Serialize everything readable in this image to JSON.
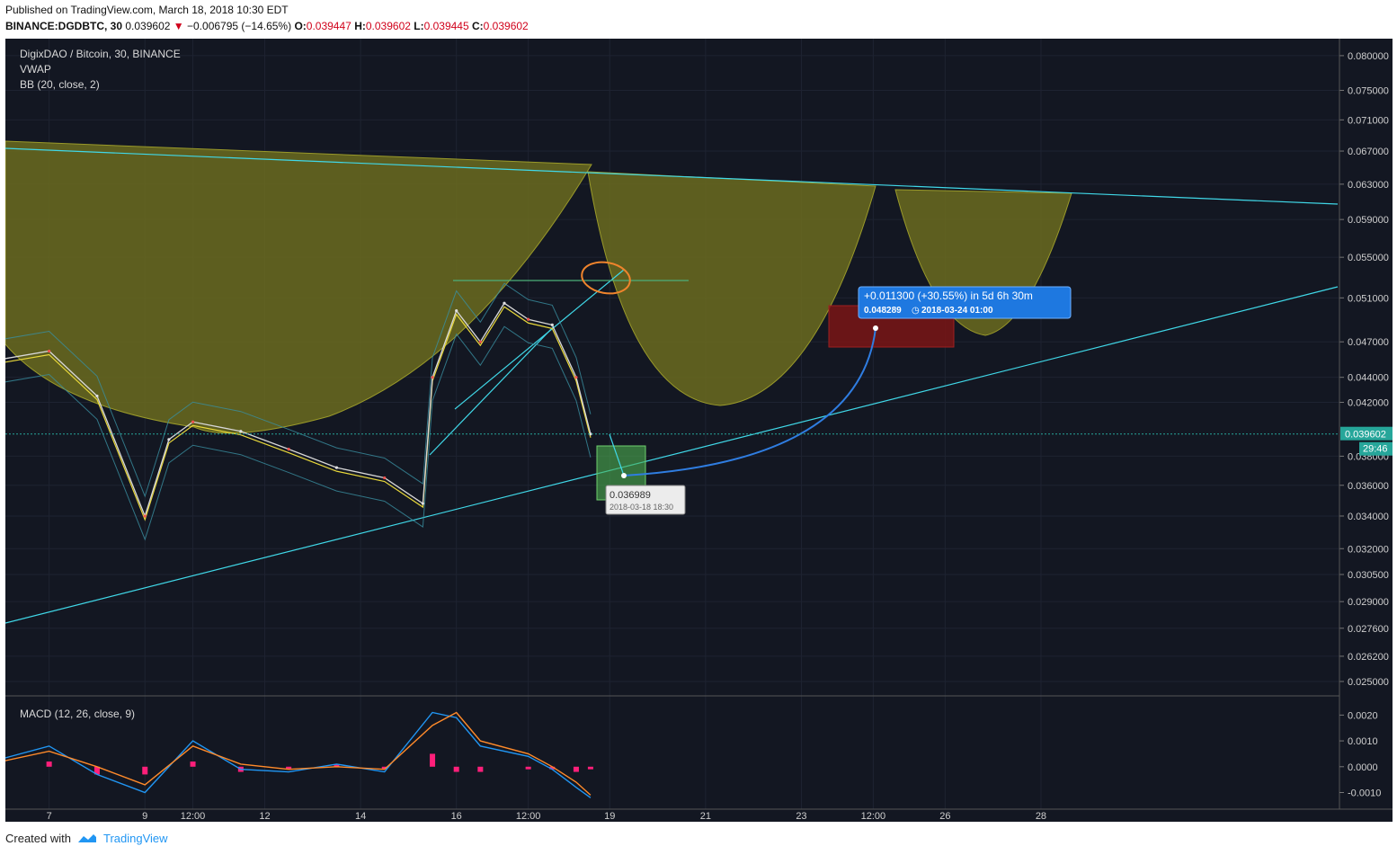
{
  "header": {
    "published": "Published on TradingView.com, March 18, 2018 10:30 EDT",
    "symbol": "BINANCE:DGDBTC, 30",
    "last": "0.039602",
    "change_arrow": "▼",
    "change": "−0.006795 (−14.65%)",
    "o_label": "O:",
    "o": "0.039447",
    "h_label": "H:",
    "h": "0.039602",
    "l_label": "L:",
    "l": "0.039445",
    "c_label": "C:",
    "c": "0.039602"
  },
  "legend": {
    "title": "DigixDAO / Bitcoin, 30, BINANCE",
    "vwap": "VWAP",
    "bb": "BB (20, close, 2)",
    "macd": "MACD (12, 26, close, 9)"
  },
  "footer": {
    "created_with": "Created with",
    "brand": "TradingView"
  },
  "colors": {
    "background": "#131722",
    "cup_fill": "#6b6b1e",
    "trendline": "#40d8e8",
    "projection": "#2f7de1",
    "target_box": "#7a1515",
    "entry_box": "#4caf50",
    "price_tag": "#26a69a",
    "macd_line": "#2196f3",
    "signal_line": "#ff8a2a",
    "histogram": "#ff1f7a"
  },
  "chart_data": {
    "type": "line",
    "title": "DigixDAO / Bitcoin, 30, BINANCE",
    "y_scale": "log",
    "ylim": [
      0.025,
      0.08
    ],
    "y_ticks": [
      "0.080000",
      "0.075000",
      "0.071000",
      "0.067000",
      "0.063000",
      "0.059000",
      "0.055000",
      "0.051000",
      "0.047000",
      "0.044000",
      "0.042000",
      "0.038000",
      "0.036000",
      "0.034000",
      "0.032000",
      "0.030500",
      "0.029000",
      "0.027600",
      "0.026200",
      "0.025000"
    ],
    "x_ticks": [
      "7",
      "9",
      "12:00",
      "12",
      "14",
      "16",
      "12:00",
      "19",
      "21",
      "23",
      "12:00",
      "26",
      "28"
    ],
    "last_price": "0.039602",
    "countdown": "29:46",
    "series": [
      {
        "name": "DGDBTC",
        "x": [
          "Mar 6",
          "Mar 7",
          "Mar 8",
          "Mar 9",
          "Mar 9.5",
          "Mar 10",
          "Mar 11",
          "Mar 12",
          "Mar 13",
          "Mar 14",
          "Mar 14.8",
          "Mar 15",
          "Mar 15.5",
          "Mar 16",
          "Mar 16.5",
          "Mar 17",
          "Mar 17.5",
          "Mar 18",
          "Mar 18.3"
        ],
        "values": [
          0.0455,
          0.0462,
          0.0425,
          0.034,
          0.0392,
          0.0405,
          0.0398,
          0.0385,
          0.0372,
          0.0365,
          0.0348,
          0.044,
          0.0498,
          0.047,
          0.0505,
          0.049,
          0.0485,
          0.044,
          0.0396
        ]
      }
    ],
    "annotations": {
      "entry_price": "0.036989",
      "entry_time": "2018-03-18 18:30",
      "target_change": "+0.011300 (+30.55%) in 5d 6h 30m",
      "target_price": "0.048289",
      "target_time": "2018-03-24  01:00"
    },
    "macd": {
      "y_ticks": [
        "0.0020",
        "0.0010",
        "0.0000",
        "-0.0010"
      ],
      "ylim": [
        -0.0014,
        0.0025
      ],
      "x": [
        "Mar 6",
        "Mar 7",
        "Mar 8",
        "Mar 9",
        "Mar 10",
        "Mar 11",
        "Mar 12",
        "Mar 13",
        "Mar 14",
        "Mar 15",
        "Mar 15.5",
        "Mar 16",
        "Mar 17",
        "Mar 17.5",
        "Mar 18",
        "Mar 18.3"
      ],
      "macd": [
        0.0003,
        0.0008,
        -0.0003,
        -0.001,
        0.001,
        -0.0001,
        -0.0002,
        0.0001,
        -0.0002,
        0.0021,
        0.0019,
        0.0008,
        0.0004,
        -0.0001,
        -0.0008,
        -0.0012
      ],
      "signal": [
        0.0002,
        0.0006,
        0.0,
        -0.0007,
        0.0008,
        0.0001,
        -0.0001,
        0.0,
        -0.0001,
        0.0016,
        0.0021,
        0.001,
        0.0005,
        0.0,
        -0.0006,
        -0.0011
      ]
    },
    "grid": true
  }
}
